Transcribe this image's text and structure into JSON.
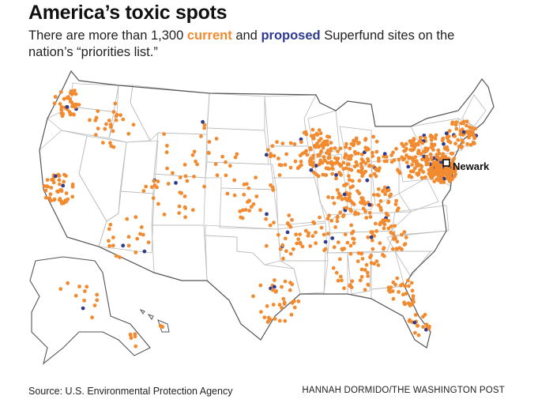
{
  "title": "America’s toxic spots",
  "subtitle": {
    "part1": "There are more than 1,300 ",
    "current_word": "current",
    "part2": " and ",
    "proposed_word": "proposed",
    "part3": " Superfund sites on the nation’s “priorities list.”"
  },
  "map": {
    "highlight_label": "Newark",
    "colors": {
      "current": "#f28b30",
      "proposed": "#2f3b8f",
      "state_border": "#b9b9b9",
      "outline": "#555555"
    }
  },
  "footer": {
    "source": "Source: U.S. Environmental Protection Agency",
    "credit": "HANNAH DORMIDO/THE WASHINGTON POST"
  }
}
